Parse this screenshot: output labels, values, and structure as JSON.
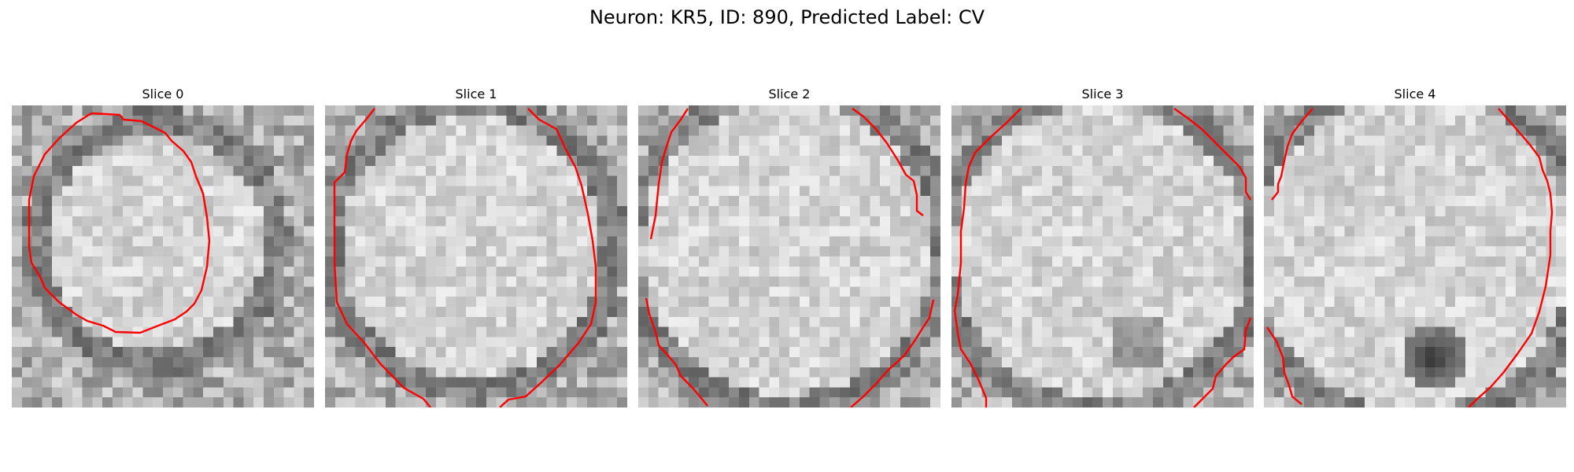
{
  "figure": {
    "title": "Neuron: KR5, ID: 890, Predicted Label: CV",
    "contour_color": "#ff0000",
    "colormap": "gray"
  },
  "slices": [
    {
      "title": "Slice 0"
    },
    {
      "title": "Slice 1"
    },
    {
      "title": "Slice 2"
    },
    {
      "title": "Slice 3"
    },
    {
      "title": "Slice 4"
    }
  ]
}
